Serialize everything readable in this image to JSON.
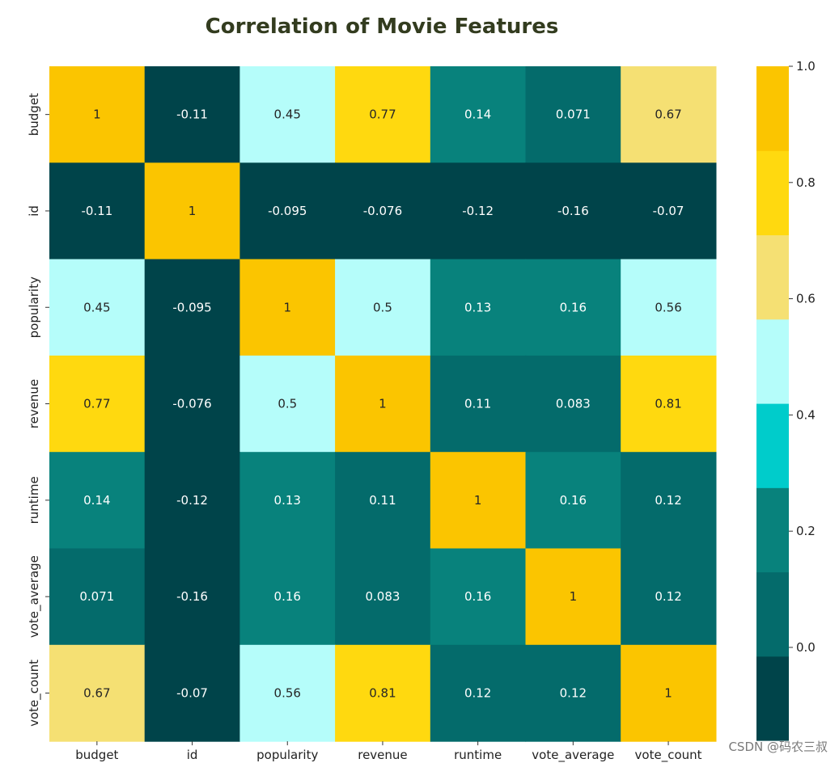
{
  "chart_data": {
    "type": "heatmap",
    "title": "Correlation of Movie Features",
    "x_categories": [
      "budget",
      "id",
      "popularity",
      "revenue",
      "runtime",
      "vote_average",
      "vote_count"
    ],
    "y_categories": [
      "budget",
      "id",
      "popularity",
      "revenue",
      "runtime",
      "vote_average",
      "vote_count"
    ],
    "values": [
      [
        1,
        -0.11,
        0.45,
        0.77,
        0.14,
        0.071,
        0.67
      ],
      [
        -0.11,
        1,
        -0.095,
        -0.076,
        -0.12,
        -0.16,
        -0.07
      ],
      [
        0.45,
        -0.095,
        1,
        0.5,
        0.13,
        0.16,
        0.56
      ],
      [
        0.77,
        -0.076,
        0.5,
        1,
        0.11,
        0.083,
        0.81
      ],
      [
        0.14,
        -0.12,
        0.13,
        0.11,
        1,
        0.16,
        0.12
      ],
      [
        0.071,
        -0.16,
        0.16,
        0.083,
        0.16,
        1,
        0.12
      ],
      [
        0.67,
        -0.07,
        0.56,
        0.81,
        0.12,
        0.12,
        1
      ]
    ],
    "annotations": [
      [
        "1",
        "-0.11",
        "0.45",
        "0.77",
        "0.14",
        "0.071",
        "0.67"
      ],
      [
        "-0.11",
        "1",
        "-0.095",
        "-0.076",
        "-0.12",
        "-0.16",
        "-0.07"
      ],
      [
        "0.45",
        "-0.095",
        "1",
        "0.5",
        "0.13",
        "0.16",
        "0.56"
      ],
      [
        "0.77",
        "-0.076",
        "0.5",
        "1",
        "0.11",
        "0.083",
        "0.81"
      ],
      [
        "0.14",
        "-0.12",
        "0.13",
        "0.11",
        "1",
        "0.16",
        "0.12"
      ],
      [
        "0.071",
        "-0.16",
        "0.16",
        "0.083",
        "0.16",
        "1",
        "0.12"
      ],
      [
        "0.67",
        "-0.07",
        "0.56",
        "0.81",
        "0.12",
        "0.12",
        "1"
      ]
    ],
    "vmin": -0.16,
    "vmax": 1.0,
    "colormap": [
      "#00444a",
      "#046b6b",
      "#08827c",
      "#00cccb",
      "#b5fdfa",
      "#f5e073",
      "#ffd90f",
      "#fbc500"
    ],
    "colorbar_ticks": [
      {
        "value": 1.0,
        "label": "1.0"
      },
      {
        "value": 0.8,
        "label": "0.8"
      },
      {
        "value": 0.6,
        "label": "0.6"
      },
      {
        "value": 0.4,
        "label": "0.4"
      },
      {
        "value": 0.2,
        "label": "0.2"
      },
      {
        "value": 0.0,
        "label": "0.0"
      }
    ],
    "grid": false,
    "colorbar_position": "right"
  },
  "watermark": "CSDN @码农三叔"
}
